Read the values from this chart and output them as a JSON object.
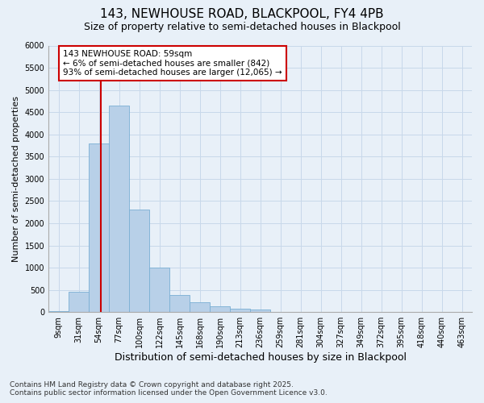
{
  "title1": "143, NEWHOUSE ROAD, BLACKPOOL, FY4 4PB",
  "title2": "Size of property relative to semi-detached houses in Blackpool",
  "xlabel": "Distribution of semi-detached houses by size in Blackpool",
  "ylabel": "Number of semi-detached properties",
  "bins": [
    "9sqm",
    "31sqm",
    "54sqm",
    "77sqm",
    "100sqm",
    "122sqm",
    "145sqm",
    "168sqm",
    "190sqm",
    "213sqm",
    "236sqm",
    "259sqm",
    "281sqm",
    "304sqm",
    "327sqm",
    "349sqm",
    "372sqm",
    "395sqm",
    "418sqm",
    "440sqm",
    "463sqm"
  ],
  "values": [
    25,
    450,
    3800,
    4650,
    2300,
    1000,
    380,
    230,
    130,
    80,
    60,
    0,
    0,
    0,
    0,
    0,
    0,
    0,
    0,
    0,
    0
  ],
  "bar_color": "#b8d0e8",
  "bar_edge_color": "#7aafd4",
  "vline_color": "#cc0000",
  "annotation_text": "143 NEWHOUSE ROAD: 59sqm\n← 6% of semi-detached houses are smaller (842)\n93% of semi-detached houses are larger (12,065) →",
  "annotation_box_color": "#ffffff",
  "annotation_box_edge": "#cc0000",
  "ylim": [
    0,
    6000
  ],
  "yticks": [
    0,
    500,
    1000,
    1500,
    2000,
    2500,
    3000,
    3500,
    4000,
    4500,
    5000,
    5500,
    6000
  ],
  "grid_color": "#c8d8ea",
  "bg_color": "#e8f0f8",
  "plot_bg_color": "#e8f0f8",
  "footnote": "Contains HM Land Registry data © Crown copyright and database right 2025.\nContains public sector information licensed under the Open Government Licence v3.0.",
  "title1_fontsize": 11,
  "title2_fontsize": 9,
  "xlabel_fontsize": 9,
  "ylabel_fontsize": 8,
  "tick_fontsize": 7,
  "annotation_fontsize": 7.5,
  "footnote_fontsize": 6.5
}
